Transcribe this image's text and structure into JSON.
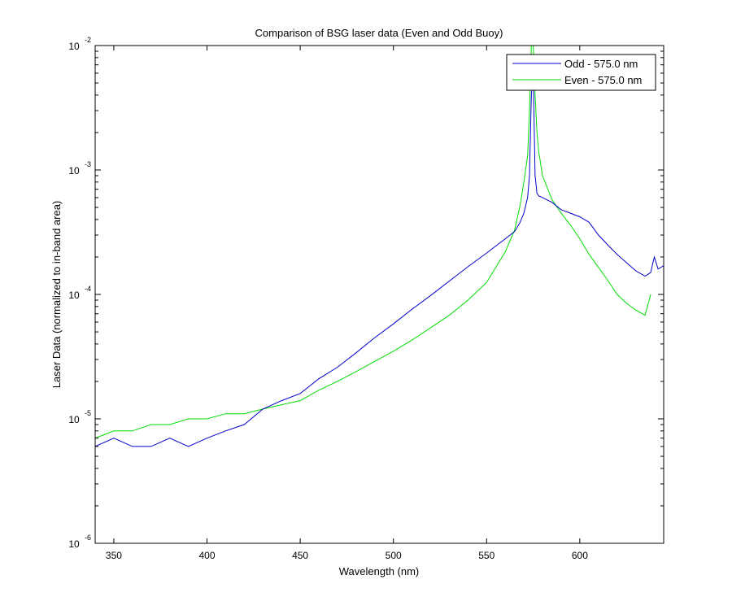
{
  "chart_data": {
    "type": "line",
    "title": "Comparison of BSG laser data (Even and Odd Buoy)",
    "xlabel": "Wavelength (nm)",
    "ylabel": "Laser Data (normalized to in-band area)",
    "xlim": [
      340,
      645
    ],
    "ylim": [
      1e-06,
      0.01
    ],
    "yscale": "log",
    "x_ticks": [
      350,
      400,
      450,
      500,
      550,
      600
    ],
    "y_ticks": [
      {
        "value": 1e-06,
        "base": "10",
        "exp": "-6"
      },
      {
        "value": 1e-05,
        "base": "10",
        "exp": "-5"
      },
      {
        "value": 0.0001,
        "base": "10",
        "exp": "-4"
      },
      {
        "value": 0.001,
        "base": "10",
        "exp": "-3"
      },
      {
        "value": 0.01,
        "base": "10",
        "exp": "-2"
      }
    ],
    "grid": false,
    "legend": "top-right",
    "series": [
      {
        "name": "Odd - 575.0 nm",
        "color": "#0000cc",
        "x": [
          340,
          350,
          360,
          370,
          380,
          390,
          400,
          410,
          420,
          430,
          440,
          450,
          460,
          470,
          480,
          490,
          500,
          510,
          520,
          530,
          540,
          550,
          560,
          565,
          568,
          570,
          572,
          573,
          574,
          575,
          576,
          577,
          578,
          580,
          585,
          590,
          595,
          600,
          605,
          610,
          615,
          620,
          625,
          630,
          635,
          638,
          640,
          642,
          645
        ],
        "y": [
          6e-06,
          7e-06,
          6e-06,
          6e-06,
          7e-06,
          6e-06,
          7e-06,
          8e-06,
          9e-06,
          1.2e-05,
          1.4e-05,
          1.6e-05,
          2.1e-05,
          2.6e-05,
          3.4e-05,
          4.5e-05,
          5.8e-05,
          7.6e-05,
          9.8e-05,
          0.000128,
          0.000167,
          0.000215,
          0.00028,
          0.00032,
          0.00038,
          0.00045,
          0.0006,
          0.0009,
          0.004,
          0.006,
          0.0009,
          0.00065,
          0.00062,
          0.0006,
          0.00055,
          0.00048,
          0.00045,
          0.00042,
          0.00038,
          0.0003,
          0.00025,
          0.00021,
          0.00018,
          0.000155,
          0.00014,
          0.00015,
          0.0002,
          0.00016,
          0.00017
        ]
      },
      {
        "name": "Even - 575.0 nm",
        "color": "#00dd00",
        "x": [
          340,
          350,
          360,
          370,
          380,
          390,
          400,
          410,
          420,
          430,
          440,
          450,
          460,
          470,
          480,
          490,
          500,
          510,
          520,
          530,
          540,
          550,
          560,
          565,
          568,
          570,
          572,
          573,
          574,
          575,
          576,
          577,
          578,
          580,
          585,
          590,
          595,
          600,
          605,
          610,
          615,
          620,
          625,
          630,
          635,
          638
        ],
        "y": [
          7e-06,
          8e-06,
          8e-06,
          9e-06,
          9e-06,
          1e-05,
          1e-05,
          1.1e-05,
          1.1e-05,
          1.2e-05,
          1.3e-05,
          1.4e-05,
          1.7e-05,
          2e-05,
          2.4e-05,
          2.9e-05,
          3.5e-05,
          4.3e-05,
          5.4e-05,
          6.8e-05,
          9e-05,
          0.000125,
          0.00022,
          0.00033,
          0.00052,
          0.0008,
          0.0013,
          0.003,
          0.01,
          0.01,
          0.004,
          0.002,
          0.0014,
          0.0009,
          0.00058,
          0.00045,
          0.00036,
          0.00028,
          0.00021,
          0.000165,
          0.00013,
          0.0001,
          8.5e-05,
          7.5e-05,
          6.8e-05,
          0.0001
        ]
      }
    ]
  }
}
